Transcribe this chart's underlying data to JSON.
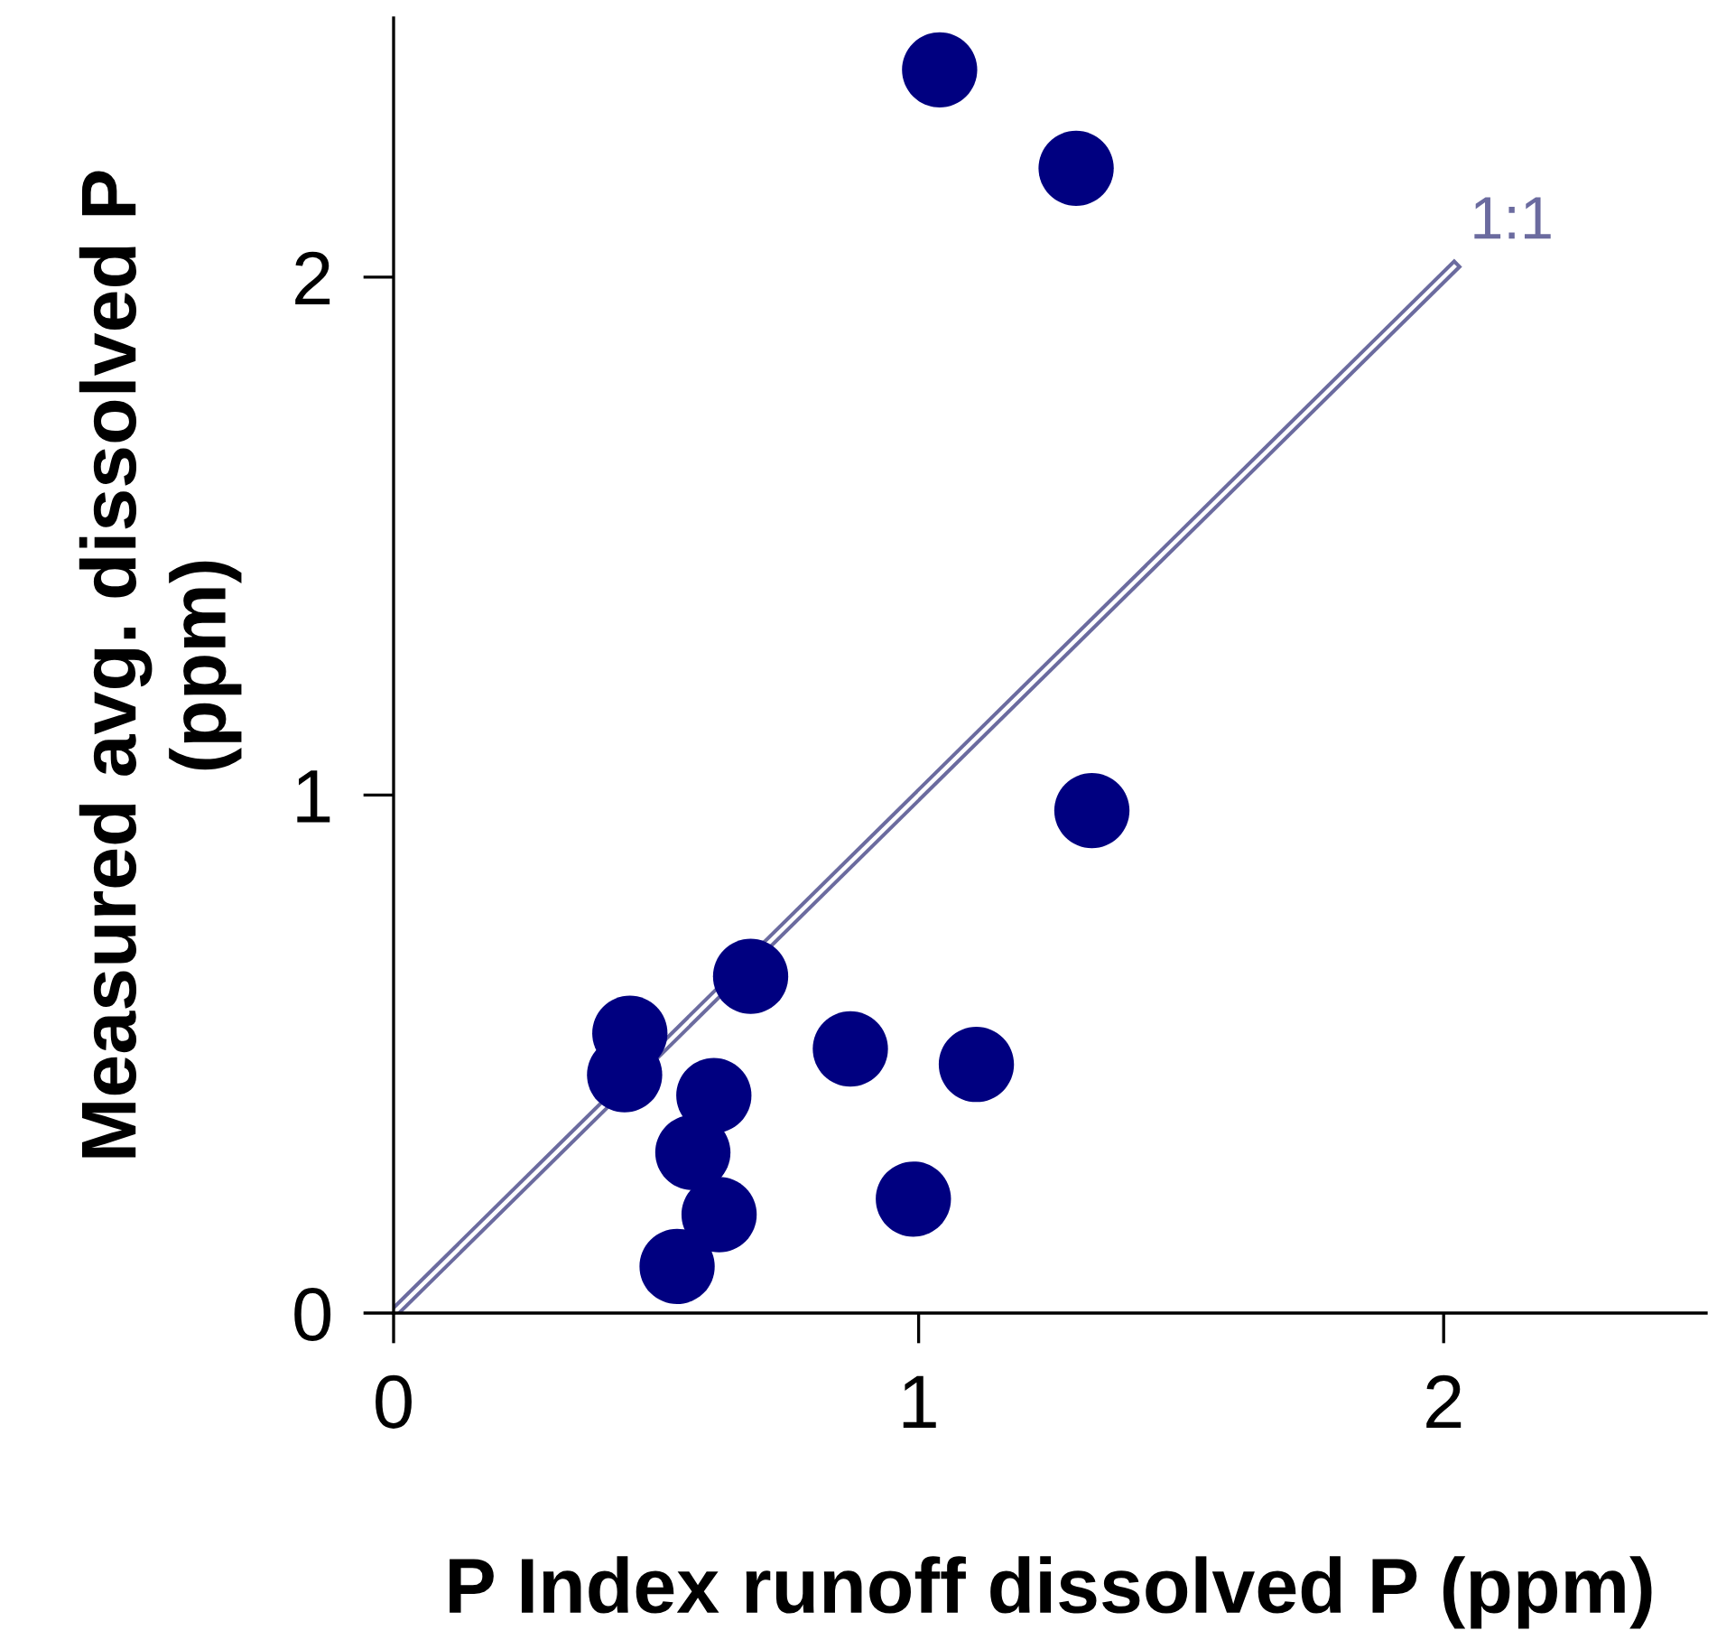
{
  "chart_data": {
    "type": "scatter",
    "xlabel": "P Index runoff dissolved P (ppm)",
    "ylabel": "Measured avg. dissolved P\n(ppm)",
    "xlim": [
      0,
      2.5
    ],
    "ylim": [
      0,
      2.5
    ],
    "xticks": [
      0,
      1,
      2
    ],
    "yticks": [
      0,
      1,
      2
    ],
    "grid": false,
    "series": [
      {
        "marker": "circle",
        "color": "#000080",
        "x": [
          1.04,
          1.3,
          1.33,
          0.68,
          0.45,
          0.44,
          0.61,
          0.57,
          0.62,
          0.54,
          0.87,
          1.11,
          0.99
        ],
        "values": [
          2.4,
          2.21,
          0.97,
          0.65,
          0.54,
          0.46,
          0.42,
          0.31,
          0.19,
          0.09,
          0.51,
          0.48,
          0.22
        ]
      },
      {
        "type": "line",
        "name": "1:1",
        "color": "#6b6b9f",
        "x": [
          0,
          2.02
        ],
        "values": [
          0,
          2.02
        ]
      }
    ]
  }
}
